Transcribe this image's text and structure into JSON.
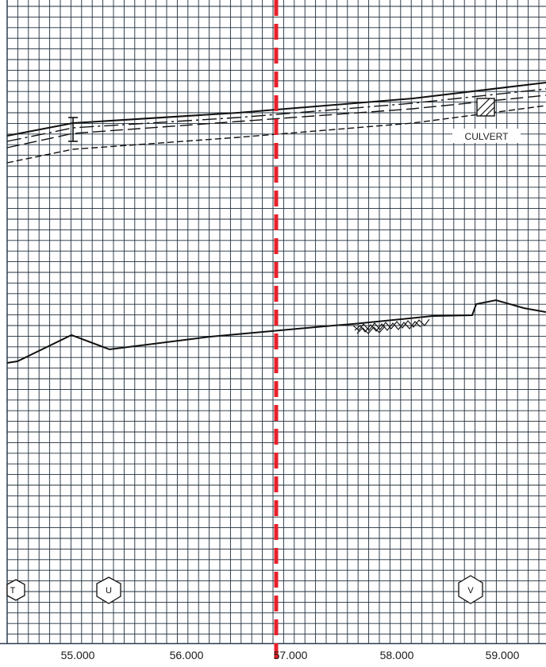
{
  "sheet": {
    "culvert_label": "CULVERT",
    "markers": [
      "T",
      "U",
      "V"
    ],
    "chainage_labels": [
      "55.000",
      "56.000",
      "57.000",
      "58.000",
      "59.000"
    ],
    "colors": {
      "grid": "#1f2d3a",
      "linework": "#111111",
      "current_position_line": "#e8202a",
      "frame": "#2c3e50"
    }
  }
}
